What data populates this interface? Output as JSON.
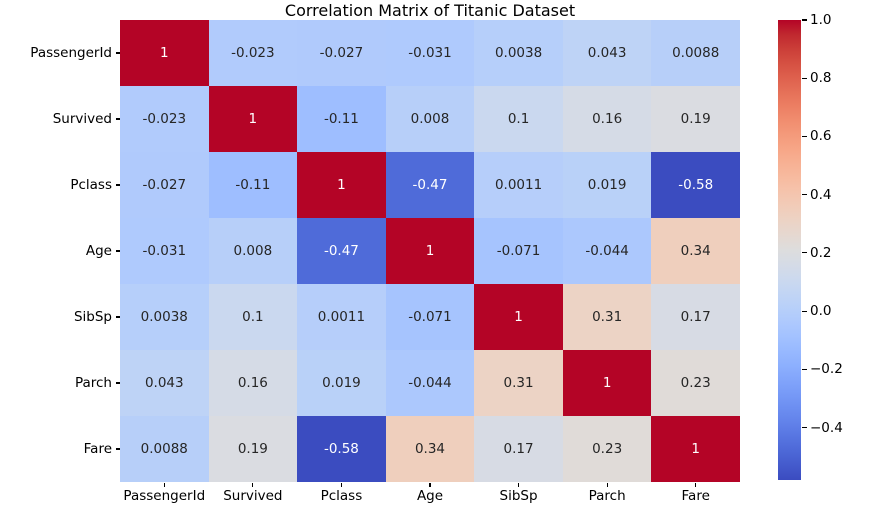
{
  "title": "Correlation Matrix of Titanic Dataset",
  "chart_data": {
    "type": "heatmap",
    "title": "Correlation Matrix of Titanic Dataset",
    "categories": [
      "PassengerId",
      "Survived",
      "Pclass",
      "Age",
      "SibSp",
      "Parch",
      "Fare"
    ],
    "matrix": [
      [
        "1",
        "-0.023",
        "-0.027",
        "-0.031",
        "0.0038",
        "0.043",
        "0.0088"
      ],
      [
        "-0.023",
        "1",
        "-0.11",
        "0.008",
        "0.1",
        "0.16",
        "0.19"
      ],
      [
        "-0.027",
        "-0.11",
        "1",
        "-0.47",
        "0.0011",
        "0.019",
        "-0.58"
      ],
      [
        "-0.031",
        "0.008",
        "-0.47",
        "1",
        "-0.071",
        "-0.044",
        "0.34"
      ],
      [
        "0.0038",
        "0.1",
        "0.0011",
        "-0.071",
        "1",
        "0.31",
        "0.17"
      ],
      [
        "0.043",
        "0.16",
        "0.019",
        "-0.044",
        "0.31",
        "1",
        "0.23"
      ],
      [
        "0.0088",
        "0.19",
        "-0.58",
        "0.34",
        "0.17",
        "0.23",
        "1"
      ]
    ],
    "colormap": "coolwarm",
    "vmin": -0.58,
    "vmax": 1.0,
    "colorbar_tick_values": [
      1.0,
      0.8,
      0.6,
      0.4,
      0.2,
      0.0,
      -0.2,
      -0.4
    ],
    "colorbar_tick_labels": [
      "1.0",
      "0.8",
      "0.6",
      "0.4",
      "0.2",
      "0.0",
      "−0.2",
      "−0.4"
    ],
    "grid": false,
    "colorbar_position": "right",
    "annotation_colors": {
      "dark": "#262626",
      "light": "#ffffff"
    },
    "diagonal_color": "#b40426",
    "min_cell_color": "#3b4cc0"
  }
}
